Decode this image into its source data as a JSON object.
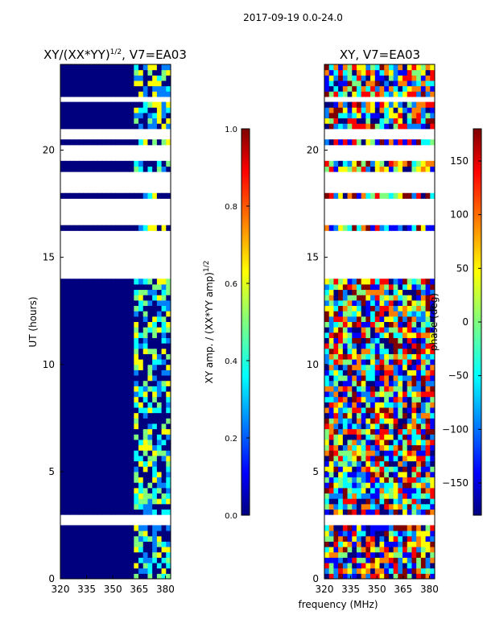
{
  "figure": {
    "suptitle": "2017-09-19 0.0-24.0",
    "xlabel_shared": "frequency (MHz)"
  },
  "colors": {
    "jet": [
      "#00007f",
      "#0000ff",
      "#007fff",
      "#00ffff",
      "#7fff7f",
      "#ffff00",
      "#ff7f00",
      "#ff0000",
      "#7f0000"
    ],
    "flagged": "#ffffff",
    "frame": "#000000"
  },
  "chart_data": [
    {
      "type": "heatmap",
      "title_prefix": "XY/(XX*YY)",
      "title_exponent": "1/2",
      "title_suffix": ", V7=EA03",
      "ylabel": "UT (hours)",
      "xlim": [
        320,
        383
      ],
      "ylim": [
        0,
        24
      ],
      "xticks": [
        320,
        335,
        350,
        365,
        380
      ],
      "yticks": [
        0,
        5,
        10,
        15,
        20
      ],
      "colorbar": {
        "label_prefix": "XY amp. / (XX*YY amp)",
        "label_exponent": "1/2",
        "range": [
          0.0,
          1.0
        ],
        "ticks": [
          "0.0",
          "0.2",
          "0.4",
          "0.6",
          "0.8",
          "1.0"
        ]
      },
      "flagged_ut_ranges": [
        [
          2.4,
          2.9
        ],
        [
          14.0,
          16.2
        ],
        [
          16.5,
          17.8
        ],
        [
          18.1,
          18.9
        ],
        [
          19.6,
          20.2
        ],
        [
          20.6,
          21.0
        ],
        [
          22.2,
          22.5
        ]
      ]
    },
    {
      "type": "heatmap",
      "title": "XY, V7=EA03",
      "ylabel": "phase (deg)",
      "xlim": [
        320,
        383
      ],
      "ylim": [
        0,
        24
      ],
      "xticks": [
        320,
        335,
        350,
        365,
        380
      ],
      "yticks": [
        0,
        5,
        10,
        15,
        20
      ],
      "colorbar": {
        "label": "phase (deg)",
        "range": [
          -180,
          180
        ],
        "ticks": [
          "−150",
          "−100",
          "−50",
          "0",
          "50",
          "100",
          "150"
        ]
      },
      "flagged_ut_ranges": [
        [
          2.4,
          2.9
        ],
        [
          14.0,
          16.2
        ],
        [
          16.5,
          17.8
        ],
        [
          18.1,
          18.9
        ],
        [
          19.6,
          20.2
        ],
        [
          20.6,
          21.0
        ],
        [
          22.2,
          22.5
        ]
      ]
    }
  ]
}
